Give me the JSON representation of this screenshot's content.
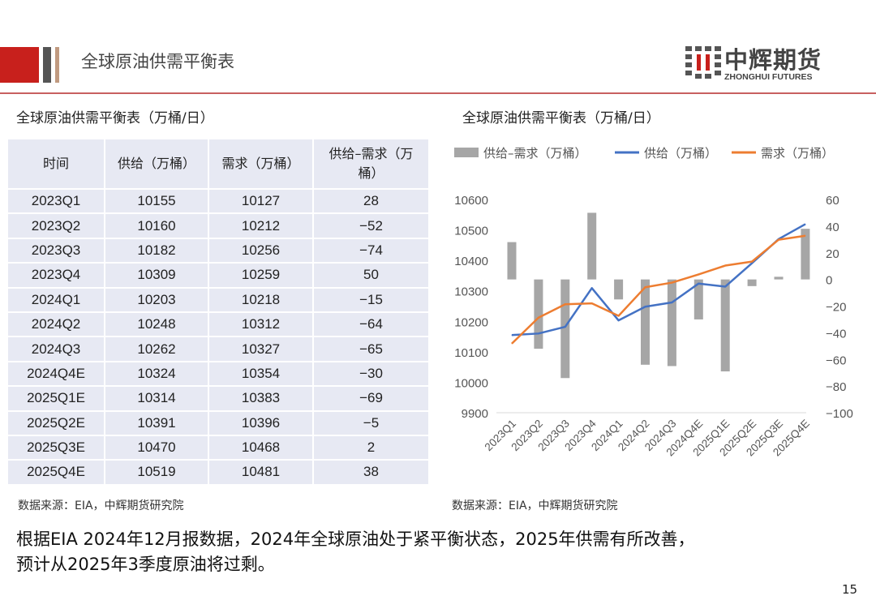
{
  "header": {
    "title": "全球原油供需平衡表",
    "logo_cn": "中辉期货",
    "logo_en": "ZHONGHUI FUTURES",
    "accent": "#c8201c"
  },
  "table": {
    "title": "全球原油供需平衡表（万桶/日）",
    "columns": [
      "时间",
      "供给（万桶）",
      "需求（万桶）",
      "供给–需求（万桶）"
    ],
    "rows": [
      [
        "2023Q1",
        "10155",
        "10127",
        "28"
      ],
      [
        "2023Q2",
        "10160",
        "10212",
        "−52"
      ],
      [
        "2023Q3",
        "10182",
        "10256",
        "−74"
      ],
      [
        "2023Q4",
        "10309",
        "10259",
        "50"
      ],
      [
        "2024Q1",
        "10203",
        "10218",
        "−15"
      ],
      [
        "2024Q2",
        "10248",
        "10312",
        "−64"
      ],
      [
        "2024Q3",
        "10262",
        "10327",
        "−65"
      ],
      [
        "2024Q4E",
        "10324",
        "10354",
        "−30"
      ],
      [
        "2025Q1E",
        "10314",
        "10383",
        "−69"
      ],
      [
        "2025Q2E",
        "10391",
        "10396",
        "−5"
      ],
      [
        "2025Q3E",
        "10470",
        "10468",
        "2"
      ],
      [
        "2025Q4E",
        "10519",
        "10481",
        "38"
      ]
    ],
    "source": "数据来源：EIA，中辉期货研究院"
  },
  "chart_data": {
    "type": "bar+line",
    "title": "全球原油供需平衡表（万桶/日）",
    "categories": [
      "2023Q1",
      "2023Q2",
      "2023Q3",
      "2023Q4",
      "2024Q1",
      "2024Q2",
      "2024Q3",
      "2024Q4E",
      "2025Q1E",
      "2025Q2E",
      "2025Q3E",
      "2025Q4E"
    ],
    "series": [
      {
        "name": "供给–需求（万桶）",
        "type": "bar",
        "axis": "right",
        "color": "#a6a6a6",
        "values": [
          28,
          -52,
          -74,
          50,
          -15,
          -64,
          -65,
          -30,
          -69,
          -5,
          2,
          38
        ]
      },
      {
        "name": "供给（万桶）",
        "type": "line",
        "axis": "left",
        "color": "#4472c4",
        "values": [
          10155,
          10160,
          10182,
          10309,
          10203,
          10248,
          10262,
          10324,
          10314,
          10391,
          10470,
          10519
        ]
      },
      {
        "name": "需求（万桶）",
        "type": "line",
        "axis": "left",
        "color": "#ed7d31",
        "values": [
          10127,
          10212,
          10256,
          10259,
          10218,
          10312,
          10327,
          10354,
          10383,
          10396,
          10468,
          10481
        ]
      }
    ],
    "left_axis": {
      "min": 9900,
      "max": 10600,
      "ticks": [
        "10600",
        "10500",
        "10400",
        "10300",
        "10200",
        "10100",
        "10000",
        "9900"
      ]
    },
    "right_axis": {
      "min": -100,
      "max": 60,
      "ticks": [
        "60",
        "40",
        "20",
        "0",
        "−20",
        "−40",
        "−60",
        "−80",
        "−100"
      ]
    },
    "legend": "top",
    "grid": false,
    "source": "数据来源：EIA，中辉期货研究院"
  },
  "summary": [
    "根据EIA 2024年12月报数据，2024年全球原油处于紧平衡状态，2025年供需有所改善，",
    "预计从2025年3季度原油将过剩。"
  ],
  "page_number": "15"
}
